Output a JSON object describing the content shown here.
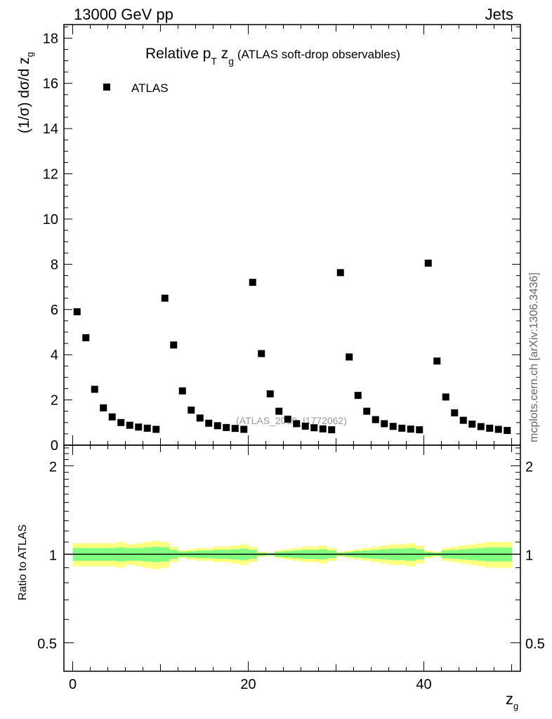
{
  "header": {
    "left": "13000 GeV pp",
    "right": "Jets",
    "side_label": "mcplots.cern.ch [arXiv:1306.3436]",
    "watermark": "(ATLAS_2019_I1772062)"
  },
  "chart_data": [
    {
      "type": "scatter",
      "title_main": "Relative p",
      "title_sub": "T",
      "title_mid": " z",
      "title_sub2": "g",
      "title_rest": " (ATLAS soft-drop observables)",
      "ylabel": "(1/σ) dσ/d z",
      "ylabel_sub": "g",
      "xlim": [
        -1,
        51
      ],
      "ylim": [
        0,
        18.6
      ],
      "yticks": [
        0,
        2,
        4,
        6,
        8,
        10,
        12,
        14,
        16,
        18
      ],
      "ytick_labels": [
        "0",
        "2",
        "4",
        "6",
        "8",
        "10",
        "12",
        "14",
        "16",
        "18"
      ],
      "legend": {
        "label": "ATLAS",
        "placement": "top-left"
      },
      "series": [
        {
          "name": "ATLAS",
          "marker": "square",
          "color": "#000000",
          "x": [
            0.5,
            1.5,
            2.5,
            3.5,
            4.5,
            5.5,
            6.5,
            7.5,
            8.5,
            9.5,
            10.5,
            11.5,
            12.5,
            13.5,
            14.5,
            15.5,
            16.5,
            17.5,
            18.5,
            19.5,
            20.5,
            21.5,
            22.5,
            23.5,
            24.5,
            25.5,
            26.5,
            27.5,
            28.5,
            29.5,
            30.5,
            31.5,
            32.5,
            33.5,
            34.5,
            35.5,
            36.5,
            37.5,
            38.5,
            39.5,
            40.5,
            41.5,
            42.5,
            43.5,
            44.5,
            45.5,
            46.5,
            47.5,
            48.5,
            49.5
          ],
          "y": [
            5.9,
            4.75,
            2.47,
            1.65,
            1.25,
            1.0,
            0.88,
            0.8,
            0.75,
            0.7,
            6.5,
            4.43,
            2.4,
            1.55,
            1.2,
            0.97,
            0.86,
            0.78,
            0.74,
            0.7,
            7.2,
            4.05,
            2.27,
            1.5,
            1.15,
            0.95,
            0.84,
            0.77,
            0.72,
            0.68,
            7.63,
            3.9,
            2.2,
            1.5,
            1.13,
            0.95,
            0.83,
            0.75,
            0.71,
            0.68,
            8.05,
            3.72,
            2.13,
            1.43,
            1.1,
            0.93,
            0.82,
            0.75,
            0.7,
            0.65
          ]
        }
      ]
    },
    {
      "type": "area",
      "ylabel": "Ratio to ATLAS",
      "xlabel": "z",
      "xlabel_sub": "g",
      "xlim": [
        -1,
        51
      ],
      "ylim": [
        0.4,
        2.35
      ],
      "yscale": "log",
      "yticks": [
        0.5,
        1,
        2
      ],
      "ytick_labels": [
        "0.5",
        "1",
        "2"
      ],
      "xticks": [
        0,
        20,
        40
      ],
      "xtick_labels": [
        "0",
        "20",
        "40"
      ],
      "reference_line": 1,
      "band_colors": {
        "outer": "#ffff80",
        "inner": "#80ff80"
      },
      "x_edges": [
        0,
        1,
        2,
        3,
        4,
        5,
        6,
        7,
        8,
        9,
        10,
        11,
        12,
        13,
        14,
        15,
        16,
        17,
        18,
        19,
        20,
        21,
        22,
        23,
        24,
        25,
        26,
        27,
        28,
        29,
        30,
        31,
        32,
        33,
        34,
        35,
        36,
        37,
        38,
        39,
        40,
        41,
        42,
        43,
        44,
        45,
        46,
        47,
        48,
        49,
        50
      ],
      "outer_half_width": [
        0.09,
        0.09,
        0.09,
        0.09,
        0.09,
        0.1,
        0.08,
        0.09,
        0.1,
        0.11,
        0.1,
        0.06,
        0.03,
        0.04,
        0.05,
        0.05,
        0.06,
        0.06,
        0.07,
        0.08,
        0.06,
        0.02,
        0.01,
        0.03,
        0.04,
        0.05,
        0.06,
        0.06,
        0.07,
        0.05,
        0.02,
        0.03,
        0.04,
        0.05,
        0.06,
        0.07,
        0.08,
        0.08,
        0.09,
        0.07,
        0.03,
        0.02,
        0.05,
        0.06,
        0.07,
        0.08,
        0.09,
        0.1,
        0.1,
        0.1
      ],
      "inner_half_width": [
        0.05,
        0.05,
        0.05,
        0.05,
        0.05,
        0.055,
        0.05,
        0.05,
        0.055,
        0.06,
        0.055,
        0.035,
        0.02,
        0.025,
        0.03,
        0.03,
        0.035,
        0.035,
        0.04,
        0.045,
        0.035,
        0.012,
        0.008,
        0.02,
        0.025,
        0.03,
        0.035,
        0.035,
        0.04,
        0.03,
        0.012,
        0.018,
        0.025,
        0.03,
        0.035,
        0.04,
        0.045,
        0.045,
        0.05,
        0.04,
        0.018,
        0.012,
        0.03,
        0.035,
        0.04,
        0.045,
        0.05,
        0.055,
        0.055,
        0.055
      ]
    }
  ]
}
